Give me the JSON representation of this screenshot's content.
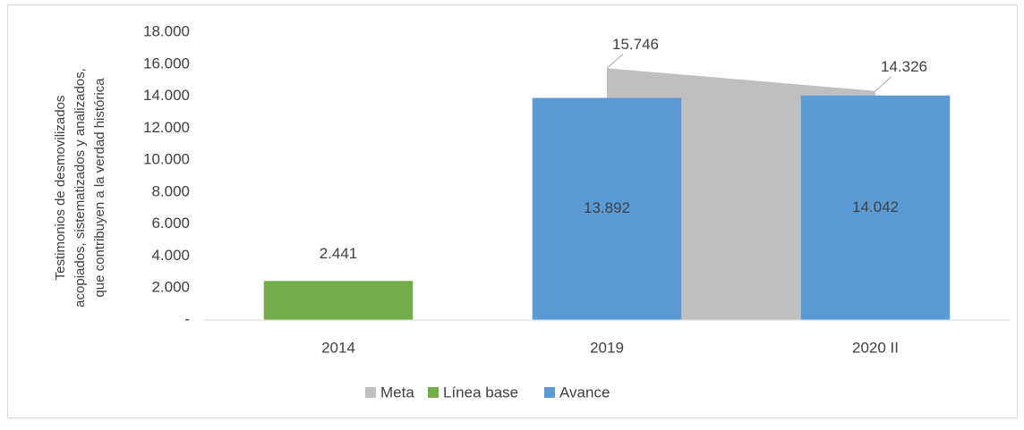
{
  "chart_data": {
    "type": "bar",
    "ylabel": [
      "Testimonios de desmovilizados",
      "acopiados, sistematizados y analizados,",
      "que contribuyen a la verdad histórica"
    ],
    "categories": [
      "2014",
      "2019",
      "2020 II"
    ],
    "series": [
      {
        "name": "Meta",
        "type": "area",
        "color": "#bfbfbf",
        "values": [
          null,
          15746,
          14326
        ],
        "value_labels": [
          null,
          "15.746",
          "14.326"
        ]
      },
      {
        "name": "Línea base",
        "type": "bar",
        "color": "#70ad47",
        "values": [
          2441,
          null,
          null
        ],
        "value_labels": [
          "2.441",
          null,
          null
        ]
      },
      {
        "name": "Avance",
        "type": "bar",
        "color": "#5b9bd5",
        "values": [
          null,
          13892,
          14042
        ],
        "value_labels": [
          null,
          "13.892",
          "14.042"
        ]
      }
    ],
    "ylim": [
      0,
      18000
    ],
    "yticks": [
      {
        "value": 0,
        "label": "-"
      },
      {
        "value": 2000,
        "label": "2.000"
      },
      {
        "value": 4000,
        "label": "4.000"
      },
      {
        "value": 6000,
        "label": "6.000"
      },
      {
        "value": 8000,
        "label": "8.000"
      },
      {
        "value": 10000,
        "label": "10.000"
      },
      {
        "value": 12000,
        "label": "12.000"
      },
      {
        "value": 14000,
        "label": "14.000"
      },
      {
        "value": 16000,
        "label": "16.000"
      },
      {
        "value": 18000,
        "label": "18.000"
      }
    ],
    "legend": "bottom"
  }
}
